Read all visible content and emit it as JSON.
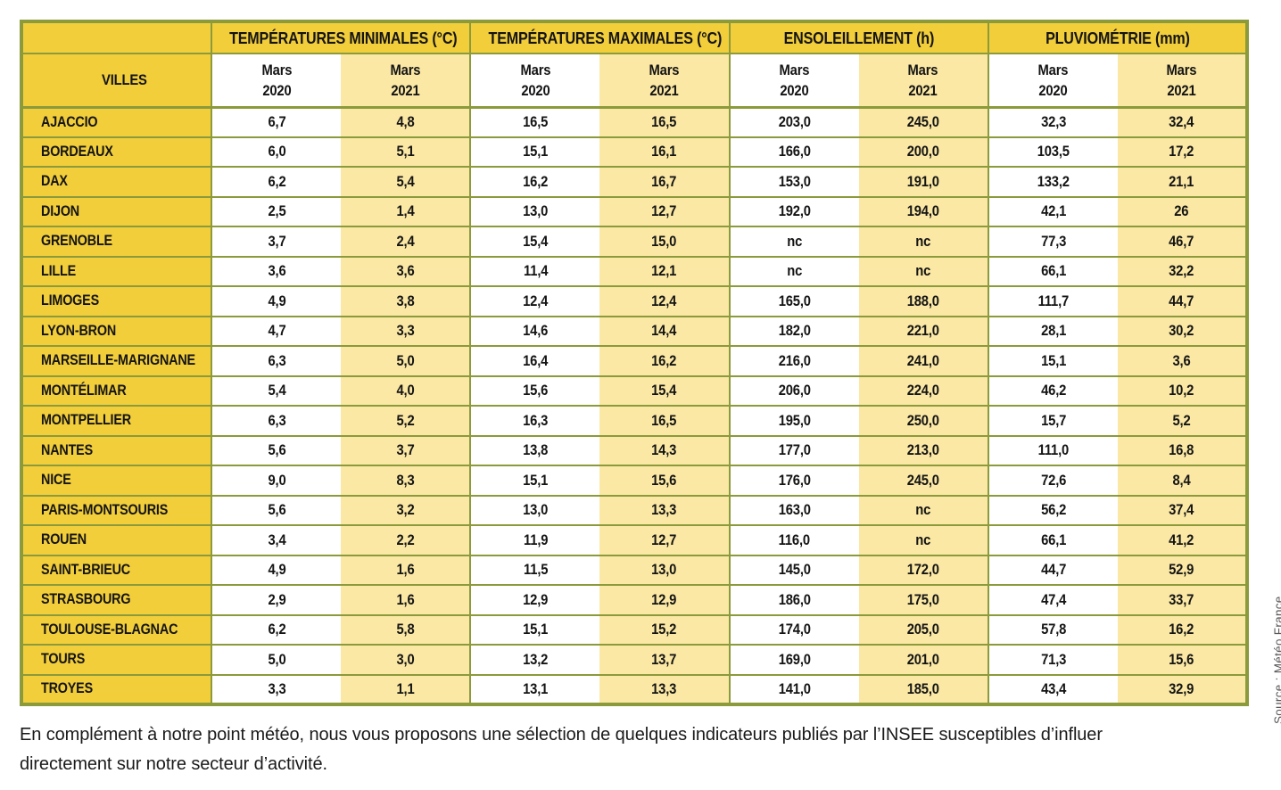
{
  "colors": {
    "gold": "#F2CE3B",
    "cream": "#FBE8A4",
    "olive": "#8B9A3B",
    "text": "#141414",
    "source_gray": "#58585A",
    "page_bg": "#FFFFFF"
  },
  "table": {
    "villes_label": "VILLES",
    "month_label": "Mars",
    "years": [
      "2020",
      "2021"
    ],
    "missing_value_label": "nc",
    "groups": [
      {
        "label": "TEMPÉRATURES MINIMALES (°C)"
      },
      {
        "label": "TEMPÉRATURES MAXIMALES (°C)"
      },
      {
        "label": "ENSOLEILLEMENT (h)"
      },
      {
        "label": "PLUVIOMÉTRIE (mm)"
      }
    ],
    "rows": [
      {
        "ville": "AJACCIO",
        "values": [
          "6,7",
          "4,8",
          "16,5",
          "16,5",
          "203,0",
          "245,0",
          "32,3",
          "32,4"
        ]
      },
      {
        "ville": "BORDEAUX",
        "values": [
          "6,0",
          "5,1",
          "15,1",
          "16,1",
          "166,0",
          "200,0",
          "103,5",
          "17,2"
        ]
      },
      {
        "ville": "DAX",
        "values": [
          "6,2",
          "5,4",
          "16,2",
          "16,7",
          "153,0",
          "191,0",
          "133,2",
          "21,1"
        ]
      },
      {
        "ville": "DIJON",
        "values": [
          "2,5",
          "1,4",
          "13,0",
          "12,7",
          "192,0",
          "194,0",
          "42,1",
          "26"
        ]
      },
      {
        "ville": "GRENOBLE",
        "values": [
          "3,7",
          "2,4",
          "15,4",
          "15,0",
          "nc",
          "nc",
          "77,3",
          "46,7"
        ]
      },
      {
        "ville": "LILLE",
        "values": [
          "3,6",
          "3,6",
          "11,4",
          "12,1",
          "nc",
          "nc",
          "66,1",
          "32,2"
        ]
      },
      {
        "ville": "LIMOGES",
        "values": [
          "4,9",
          "3,8",
          "12,4",
          "12,4",
          "165,0",
          "188,0",
          "111,7",
          "44,7"
        ]
      },
      {
        "ville": "LYON-BRON",
        "values": [
          "4,7",
          "3,3",
          "14,6",
          "14,4",
          "182,0",
          "221,0",
          "28,1",
          "30,2"
        ]
      },
      {
        "ville": "MARSEILLE-MARIGNANE",
        "values": [
          "6,3",
          "5,0",
          "16,4",
          "16,2",
          "216,0",
          "241,0",
          "15,1",
          "3,6"
        ]
      },
      {
        "ville": "MONTÉLIMAR",
        "values": [
          "5,4",
          "4,0",
          "15,6",
          "15,4",
          "206,0",
          "224,0",
          "46,2",
          "10,2"
        ]
      },
      {
        "ville": "MONTPELLIER",
        "values": [
          "6,3",
          "5,2",
          "16,3",
          "16,5",
          "195,0",
          "250,0",
          "15,7",
          "5,2"
        ]
      },
      {
        "ville": "NANTES",
        "values": [
          "5,6",
          "3,7",
          "13,8",
          "14,3",
          "177,0",
          "213,0",
          "111,0",
          "16,8"
        ]
      },
      {
        "ville": "NICE",
        "values": [
          "9,0",
          "8,3",
          "15,1",
          "15,6",
          "176,0",
          "245,0",
          "72,6",
          "8,4"
        ]
      },
      {
        "ville": "PARIS-MONTSOURIS",
        "values": [
          "5,6",
          "3,2",
          "13,0",
          "13,3",
          "163,0",
          "nc",
          "56,2",
          "37,4"
        ]
      },
      {
        "ville": "ROUEN",
        "values": [
          "3,4",
          "2,2",
          "11,9",
          "12,7",
          "116,0",
          "nc",
          "66,1",
          "41,2"
        ]
      },
      {
        "ville": "SAINT-BRIEUC",
        "values": [
          "4,9",
          "1,6",
          "11,5",
          "13,0",
          "145,0",
          "172,0",
          "44,7",
          "52,9"
        ]
      },
      {
        "ville": "STRASBOURG",
        "values": [
          "2,9",
          "1,6",
          "12,9",
          "12,9",
          "186,0",
          "175,0",
          "47,4",
          "33,7"
        ]
      },
      {
        "ville": "TOULOUSE-BLAGNAC",
        "values": [
          "6,2",
          "5,8",
          "15,1",
          "15,2",
          "174,0",
          "205,0",
          "57,8",
          "16,2"
        ]
      },
      {
        "ville": "TOURS",
        "values": [
          "5,0",
          "3,0",
          "13,2",
          "13,7",
          "169,0",
          "201,0",
          "71,3",
          "15,6"
        ]
      },
      {
        "ville": "TROYES",
        "values": [
          "3,3",
          "1,1",
          "13,1",
          "13,3",
          "141,0",
          "185,0",
          "43,4",
          "32,9"
        ]
      }
    ]
  },
  "source_note": "Source : Météo France",
  "footer": {
    "lines": [
      "En complément à notre point météo, nous vous proposons une sélection de quelques indicateurs publiés par l’INSEE susceptibles d’influer",
      "directement sur notre secteur d’activité."
    ]
  }
}
